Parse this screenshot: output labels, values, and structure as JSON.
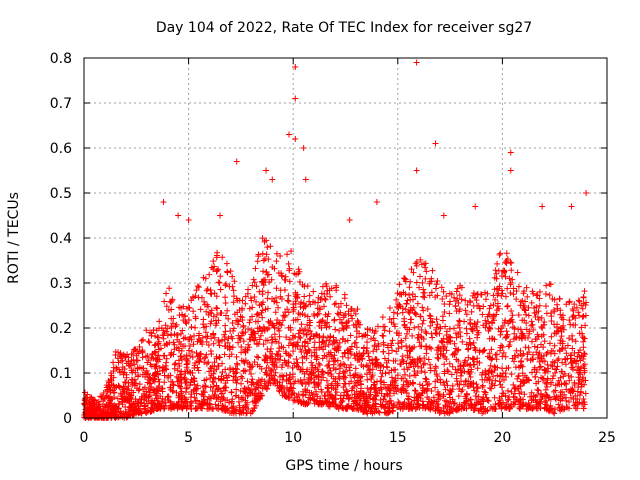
{
  "chart_data": {
    "type": "scatter",
    "title": "Day 104 of 2022, Rate Of TEC Index for receiver sg27",
    "xlabel": "GPS time / hours",
    "ylabel": "ROTI / TECUs",
    "xlim": [
      0,
      25
    ],
    "ylim": [
      0,
      0.8
    ],
    "xticks": [
      0,
      5,
      10,
      15,
      20,
      25
    ],
    "xtick_labels": [
      "0",
      "5",
      "10",
      "15",
      "20",
      "25"
    ],
    "yticks": [
      0,
      0.1,
      0.2,
      0.3,
      0.4,
      0.5,
      0.6,
      0.7,
      0.8
    ],
    "ytick_labels": [
      "0",
      "0.1",
      "0.2",
      "0.3",
      "0.4",
      "0.5",
      "0.6",
      "0.7",
      "0.8"
    ],
    "grid": true,
    "marker": "+",
    "color": "#ff0000",
    "envelope": {
      "x": [
        0,
        0.5,
        1,
        1.5,
        2,
        2.5,
        3,
        3.5,
        4,
        4.5,
        5,
        5.5,
        6,
        6.5,
        7,
        7.5,
        8,
        8.5,
        9,
        9.5,
        10,
        10.5,
        11,
        11.5,
        12,
        12.5,
        13,
        13.5,
        14,
        14.5,
        15,
        15.5,
        16,
        16.5,
        17,
        17.5,
        18,
        18.5,
        19,
        19.5,
        20,
        20.5,
        21,
        21.5,
        22,
        22.5,
        23,
        23.5,
        24
      ],
      "typical_max": [
        0.06,
        0.04,
        0.06,
        0.15,
        0.14,
        0.16,
        0.2,
        0.2,
        0.3,
        0.25,
        0.25,
        0.3,
        0.35,
        0.38,
        0.36,
        0.3,
        0.3,
        0.4,
        0.4,
        0.35,
        0.4,
        0.3,
        0.3,
        0.3,
        0.3,
        0.28,
        0.25,
        0.2,
        0.2,
        0.25,
        0.3,
        0.32,
        0.36,
        0.35,
        0.3,
        0.28,
        0.3,
        0.3,
        0.28,
        0.3,
        0.4,
        0.35,
        0.3,
        0.28,
        0.3,
        0.3,
        0.28,
        0.25,
        0.3
      ],
      "typical_min": [
        0.0,
        0.0,
        0.0,
        0.0,
        0.0,
        0.01,
        0.01,
        0.02,
        0.02,
        0.02,
        0.02,
        0.02,
        0.02,
        0.02,
        0.01,
        0.01,
        0.01,
        0.05,
        0.08,
        0.05,
        0.04,
        0.03,
        0.03,
        0.03,
        0.02,
        0.02,
        0.02,
        0.01,
        0.01,
        0.01,
        0.02,
        0.02,
        0.02,
        0.02,
        0.01,
        0.01,
        0.02,
        0.02,
        0.01,
        0.02,
        0.02,
        0.02,
        0.02,
        0.02,
        0.02,
        0.01,
        0.02,
        0.02,
        0.02
      ]
    },
    "outliers": [
      {
        "x": 10.1,
        "y": 0.78
      },
      {
        "x": 10.1,
        "y": 0.71
      },
      {
        "x": 15.9,
        "y": 0.79
      },
      {
        "x": 9.8,
        "y": 0.63
      },
      {
        "x": 10.1,
        "y": 0.62
      },
      {
        "x": 10.5,
        "y": 0.6
      },
      {
        "x": 16.8,
        "y": 0.61
      },
      {
        "x": 20.4,
        "y": 0.59
      },
      {
        "x": 7.3,
        "y": 0.57
      },
      {
        "x": 20.4,
        "y": 0.55
      },
      {
        "x": 8.7,
        "y": 0.55
      },
      {
        "x": 15.9,
        "y": 0.55
      },
      {
        "x": 10.6,
        "y": 0.53
      },
      {
        "x": 9.0,
        "y": 0.53
      },
      {
        "x": 24.0,
        "y": 0.5
      },
      {
        "x": 14.0,
        "y": 0.48
      },
      {
        "x": 18.7,
        "y": 0.47
      },
      {
        "x": 3.8,
        "y": 0.48
      },
      {
        "x": 23.3,
        "y": 0.47
      },
      {
        "x": 21.9,
        "y": 0.47
      },
      {
        "x": 4.5,
        "y": 0.45
      },
      {
        "x": 6.5,
        "y": 0.45
      },
      {
        "x": 12.7,
        "y": 0.44
      },
      {
        "x": 17.2,
        "y": 0.45
      },
      {
        "x": 5.0,
        "y": 0.44
      }
    ]
  }
}
